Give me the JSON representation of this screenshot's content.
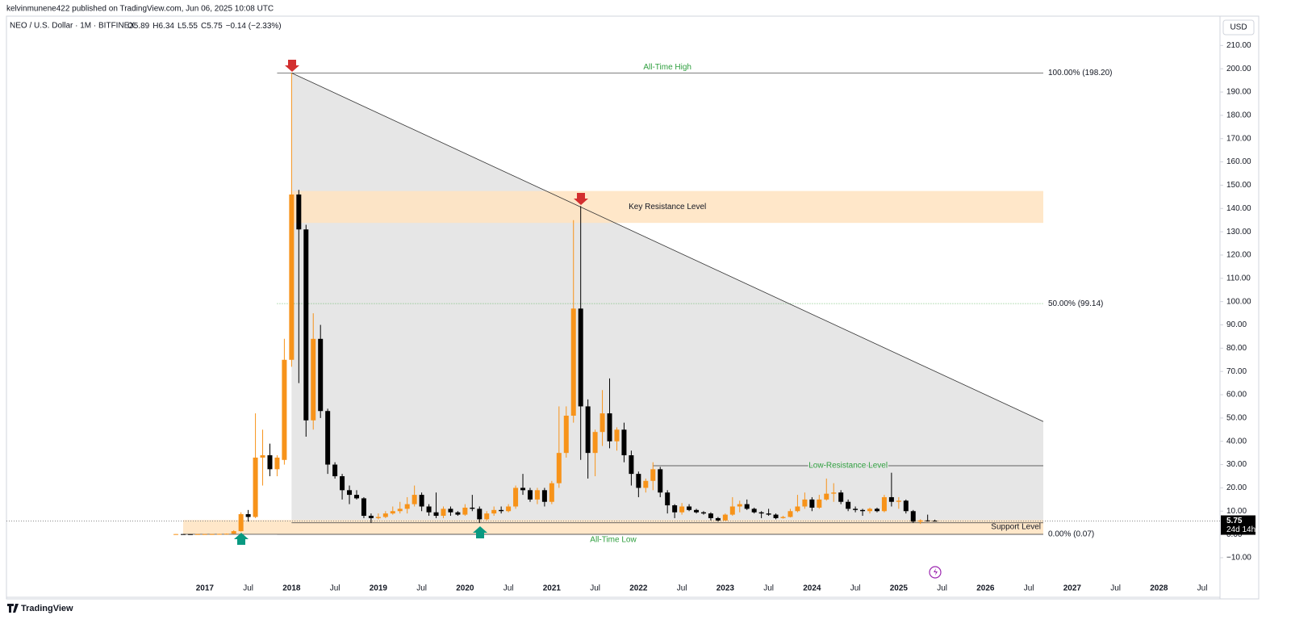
{
  "header": {
    "published": "kelvinmunene422 published on TradingView.com, Jun 06, 2025 10:08 UTC",
    "logo": "TradingView"
  },
  "chart_data": {
    "type": "candlestick",
    "legend": {
      "symbol": "NEO / U.S. Dollar · 1M · BITFINEX",
      "ohlc": [
        {
          "key": "O",
          "value": "5.89"
        },
        {
          "key": "H",
          "value": "6.34"
        },
        {
          "key": "L",
          "value": "5.55"
        },
        {
          "key": "C",
          "value": "5.75"
        }
      ],
      "change": "−0.14 (−2.33%)"
    },
    "currency": "USD",
    "x": [
      "2016-09",
      "2016-10",
      "2016-11",
      "2016-12",
      "2017-01",
      "2017-02",
      "2017-03",
      "2017-04",
      "2017-05",
      "2017-06",
      "2017-07",
      "2017-08",
      "2017-09",
      "2017-10",
      "2017-11",
      "2017-12",
      "2018-01",
      "2018-02",
      "2018-03",
      "2018-04",
      "2018-05",
      "2018-06",
      "2018-07",
      "2018-08",
      "2018-09",
      "2018-10",
      "2018-11",
      "2018-12",
      "2019-01",
      "2019-02",
      "2019-03",
      "2019-04",
      "2019-05",
      "2019-06",
      "2019-07",
      "2019-08",
      "2019-09",
      "2019-10",
      "2019-11",
      "2019-12",
      "2020-01",
      "2020-02",
      "2020-03",
      "2020-04",
      "2020-05",
      "2020-06",
      "2020-07",
      "2020-08",
      "2020-09",
      "2020-10",
      "2020-11",
      "2020-12",
      "2021-01",
      "2021-02",
      "2021-03",
      "2021-04",
      "2021-05",
      "2021-06",
      "2021-07",
      "2021-08",
      "2021-09",
      "2021-10",
      "2021-11",
      "2021-12",
      "2022-01",
      "2022-02",
      "2022-03",
      "2022-04",
      "2022-05",
      "2022-06",
      "2022-07",
      "2022-08",
      "2022-09",
      "2022-10",
      "2022-11",
      "2022-12",
      "2023-01",
      "2023-02",
      "2023-03",
      "2023-04",
      "2023-05",
      "2023-06",
      "2023-07",
      "2023-08",
      "2023-09",
      "2023-10",
      "2023-11",
      "2023-12",
      "2024-01",
      "2024-02",
      "2024-03",
      "2024-04",
      "2024-05",
      "2024-06",
      "2024-07",
      "2024-08",
      "2024-09",
      "2024-10",
      "2024-11",
      "2024-12",
      "2025-01",
      "2025-02",
      "2025-03",
      "2025-04",
      "2025-05",
      "2025-06"
    ],
    "series": [
      {
        "name": "NEO / U.S. Dollar",
        "up_color": "#f7931a",
        "down_color": "#000000",
        "open": [
          0.12,
          0.15,
          0.12,
          0.1,
          0.13,
          0.14,
          0.15,
          0.2,
          0.3,
          1.4,
          8.7,
          7.5,
          33,
          34,
          28,
          32,
          75,
          146,
          131,
          49,
          84,
          53,
          30,
          25,
          19,
          17,
          15.5,
          8,
          7,
          7.5,
          9,
          10,
          11,
          13,
          17,
          12,
          9.5,
          8,
          11,
          9.5,
          8.5,
          11.5,
          11,
          6.5,
          9,
          10.5,
          10,
          12,
          20,
          19,
          15,
          19,
          14,
          22,
          35,
          51,
          97,
          55,
          35,
          44,
          52,
          40,
          45,
          34,
          26,
          20,
          23,
          28,
          18,
          12.5,
          9.5,
          12,
          10.5,
          9.5,
          9,
          7,
          6,
          8.5,
          12,
          13,
          11,
          9.5,
          9,
          8.5,
          7,
          7.5,
          10,
          12,
          15,
          11.5,
          15,
          17.5,
          18,
          14,
          11,
          10.5,
          10,
          11,
          10,
          16,
          14,
          14.5,
          10,
          5.5,
          6,
          5.89
        ],
        "high": [
          0.2,
          0.18,
          0.15,
          0.15,
          0.2,
          0.2,
          0.3,
          0.4,
          1.8,
          9.5,
          10.5,
          52,
          45,
          39,
          34,
          84,
          198.2,
          148,
          133,
          95,
          90,
          54,
          31,
          26,
          21,
          19,
          16,
          9,
          9,
          10,
          12,
          14,
          16,
          21,
          18,
          13,
          18,
          12,
          12,
          10,
          13,
          17,
          12,
          10,
          12,
          12,
          13,
          21,
          26,
          20,
          20,
          20,
          23,
          55,
          55,
          135,
          141,
          58,
          45,
          62,
          67,
          46,
          48,
          36,
          27,
          24,
          31,
          29,
          19,
          13,
          13.5,
          13,
          11,
          10,
          9.5,
          7.5,
          9,
          16,
          14.5,
          15,
          11.5,
          10,
          11,
          9,
          8,
          11,
          17,
          18,
          16,
          17,
          24,
          22,
          19,
          15,
          12,
          11,
          11.5,
          11.5,
          17,
          26.5,
          16,
          15,
          10.5,
          6.5,
          8.5,
          6.34
        ],
        "low": [
          0.07,
          0.1,
          0.09,
          0.08,
          0.1,
          0.12,
          0.13,
          0.15,
          0.25,
          1.2,
          5.5,
          7,
          21,
          25,
          25,
          30,
          72,
          65,
          42,
          45,
          50,
          26,
          24,
          15,
          13,
          15,
          7,
          5,
          6.5,
          7,
          8.5,
          9,
          9,
          12,
          10,
          8,
          7,
          7,
          8,
          8,
          8,
          10,
          5,
          6,
          8,
          9,
          9.5,
          11,
          17,
          14,
          13,
          12,
          13,
          20,
          33,
          48,
          32,
          24,
          25,
          38,
          37,
          36,
          31,
          21,
          16,
          18,
          19,
          16,
          9,
          7,
          8.5,
          10,
          9,
          8.5,
          6,
          5.5,
          6,
          8,
          9.5,
          10.5,
          9,
          7,
          8,
          6.5,
          6.8,
          7.3,
          9.5,
          11,
          10,
          11,
          14.5,
          14,
          13,
          10,
          9.5,
          8,
          9,
          9.5,
          9.5,
          12,
          11,
          9,
          5,
          4.5,
          5.5,
          5.55
        ],
        "close": [
          0.15,
          0.12,
          0.1,
          0.13,
          0.14,
          0.15,
          0.2,
          0.3,
          1.4,
          8.7,
          7.5,
          33,
          34,
          28,
          33,
          75,
          146,
          131,
          49,
          84,
          53,
          30,
          25,
          19,
          17,
          15.5,
          8,
          7,
          7.5,
          9,
          10,
          11,
          13,
          17,
          12,
          9.5,
          8,
          11,
          9.5,
          8.5,
          11.5,
          11,
          6.5,
          9,
          10.5,
          10,
          12,
          20,
          19,
          15,
          19,
          14,
          22,
          35,
          51,
          97,
          55,
          35,
          44,
          52,
          40,
          45,
          34,
          26,
          20,
          23,
          28,
          18,
          12.5,
          9.5,
          12,
          10.5,
          9.5,
          9,
          7,
          6,
          8.5,
          12,
          13,
          11,
          9.5,
          9,
          8.5,
          7,
          7.5,
          10,
          12,
          15,
          11.5,
          15,
          17.5,
          18,
          14,
          11,
          10.5,
          10,
          11,
          10,
          16,
          14,
          14.5,
          10,
          5.5,
          6,
          5.9,
          5.75
        ]
      }
    ],
    "xlim": [
      "2014-10",
      "2028-09"
    ],
    "xticks": [
      {
        "value": "2017-01",
        "label": "2017"
      },
      {
        "value": "2017-07",
        "label": "Jul"
      },
      {
        "value": "2018-01",
        "label": "2018"
      },
      {
        "value": "2018-07",
        "label": "Jul"
      },
      {
        "value": "2019-01",
        "label": "2019"
      },
      {
        "value": "2019-07",
        "label": "Jul"
      },
      {
        "value": "2020-01",
        "label": "2020"
      },
      {
        "value": "2020-07",
        "label": "Jul"
      },
      {
        "value": "2021-01",
        "label": "2021"
      },
      {
        "value": "2021-07",
        "label": "Jul"
      },
      {
        "value": "2022-01",
        "label": "2022"
      },
      {
        "value": "2022-07",
        "label": "Jul"
      },
      {
        "value": "2023-01",
        "label": "2023"
      },
      {
        "value": "2023-07",
        "label": "Jul"
      },
      {
        "value": "2024-01",
        "label": "2024"
      },
      {
        "value": "2024-07",
        "label": "Jul"
      },
      {
        "value": "2025-01",
        "label": "2025"
      },
      {
        "value": "2025-07",
        "label": "Jul"
      },
      {
        "value": "2026-01",
        "label": "2026"
      },
      {
        "value": "2026-07",
        "label": "Jul"
      },
      {
        "value": "2027-01",
        "label": "2027"
      },
      {
        "value": "2027-07",
        "label": "Jul"
      },
      {
        "value": "2028-01",
        "label": "2028"
      },
      {
        "value": "2028-07",
        "label": "Jul"
      }
    ],
    "ylim": [
      -27,
      222.6
    ],
    "yticks": [
      {
        "value": -10,
        "label": "−10.00"
      },
      {
        "value": 0,
        "label": "0.00"
      },
      {
        "value": 10,
        "label": "10.00"
      },
      {
        "value": 20,
        "label": "20.00"
      },
      {
        "value": 30,
        "label": "30.00"
      },
      {
        "value": 40,
        "label": "40.00"
      },
      {
        "value": 50,
        "label": "50.00"
      },
      {
        "value": 60,
        "label": "60.00"
      },
      {
        "value": 70,
        "label": "70.00"
      },
      {
        "value": 80,
        "label": "80.00"
      },
      {
        "value": 90,
        "label": "90.00"
      },
      {
        "value": 100,
        "label": "100.00"
      },
      {
        "value": 110,
        "label": "110.00"
      },
      {
        "value": 120,
        "label": "120.00"
      },
      {
        "value": 130,
        "label": "130.00"
      },
      {
        "value": 140,
        "label": "140.00"
      },
      {
        "value": 150,
        "label": "150.00"
      },
      {
        "value": 160,
        "label": "160.00"
      },
      {
        "value": 170,
        "label": "170.00"
      },
      {
        "value": 180,
        "label": "180.00"
      },
      {
        "value": 190,
        "label": "190.00"
      },
      {
        "value": 200,
        "label": "200.00"
      },
      {
        "value": 210,
        "label": "210.00"
      }
    ],
    "grid": false,
    "trend_line": {
      "from": "2018-01",
      "from_value": 198.2,
      "to": "2026-09",
      "to_value": 48.5,
      "fill": "#e6e6e6"
    },
    "fib": {
      "from": "2017-11",
      "to": "2026-09",
      "levels": [
        {
          "value": 198.2,
          "label": "100.00% (198.20)",
          "caption": "All-Time High"
        },
        {
          "value": 99.14,
          "label": "50.00% (99.14)"
        },
        {
          "value": 0.07,
          "label": "0.00% (0.07)"
        }
      ]
    },
    "key_resistance": {
      "label": "Key Resistance Level",
      "from": "2018-01",
      "to": "2026-09",
      "low": 133.8,
      "high": 147.5,
      "color": "#ffe3bf"
    },
    "support": {
      "label": "Support Level",
      "caption": "All-Time Low",
      "from": "2016-10",
      "to": "2026-09",
      "low": 0.07,
      "high": 6.2,
      "line": 5,
      "color": "#ffe3bf"
    },
    "low_resistance": {
      "label": "Low-Resistance Level",
      "from": "2022-03",
      "to": "2026-09",
      "value": 29.5
    },
    "last_price": {
      "value": 5.75,
      "label": "5.75",
      "countdown": "24d 14h"
    }
  }
}
